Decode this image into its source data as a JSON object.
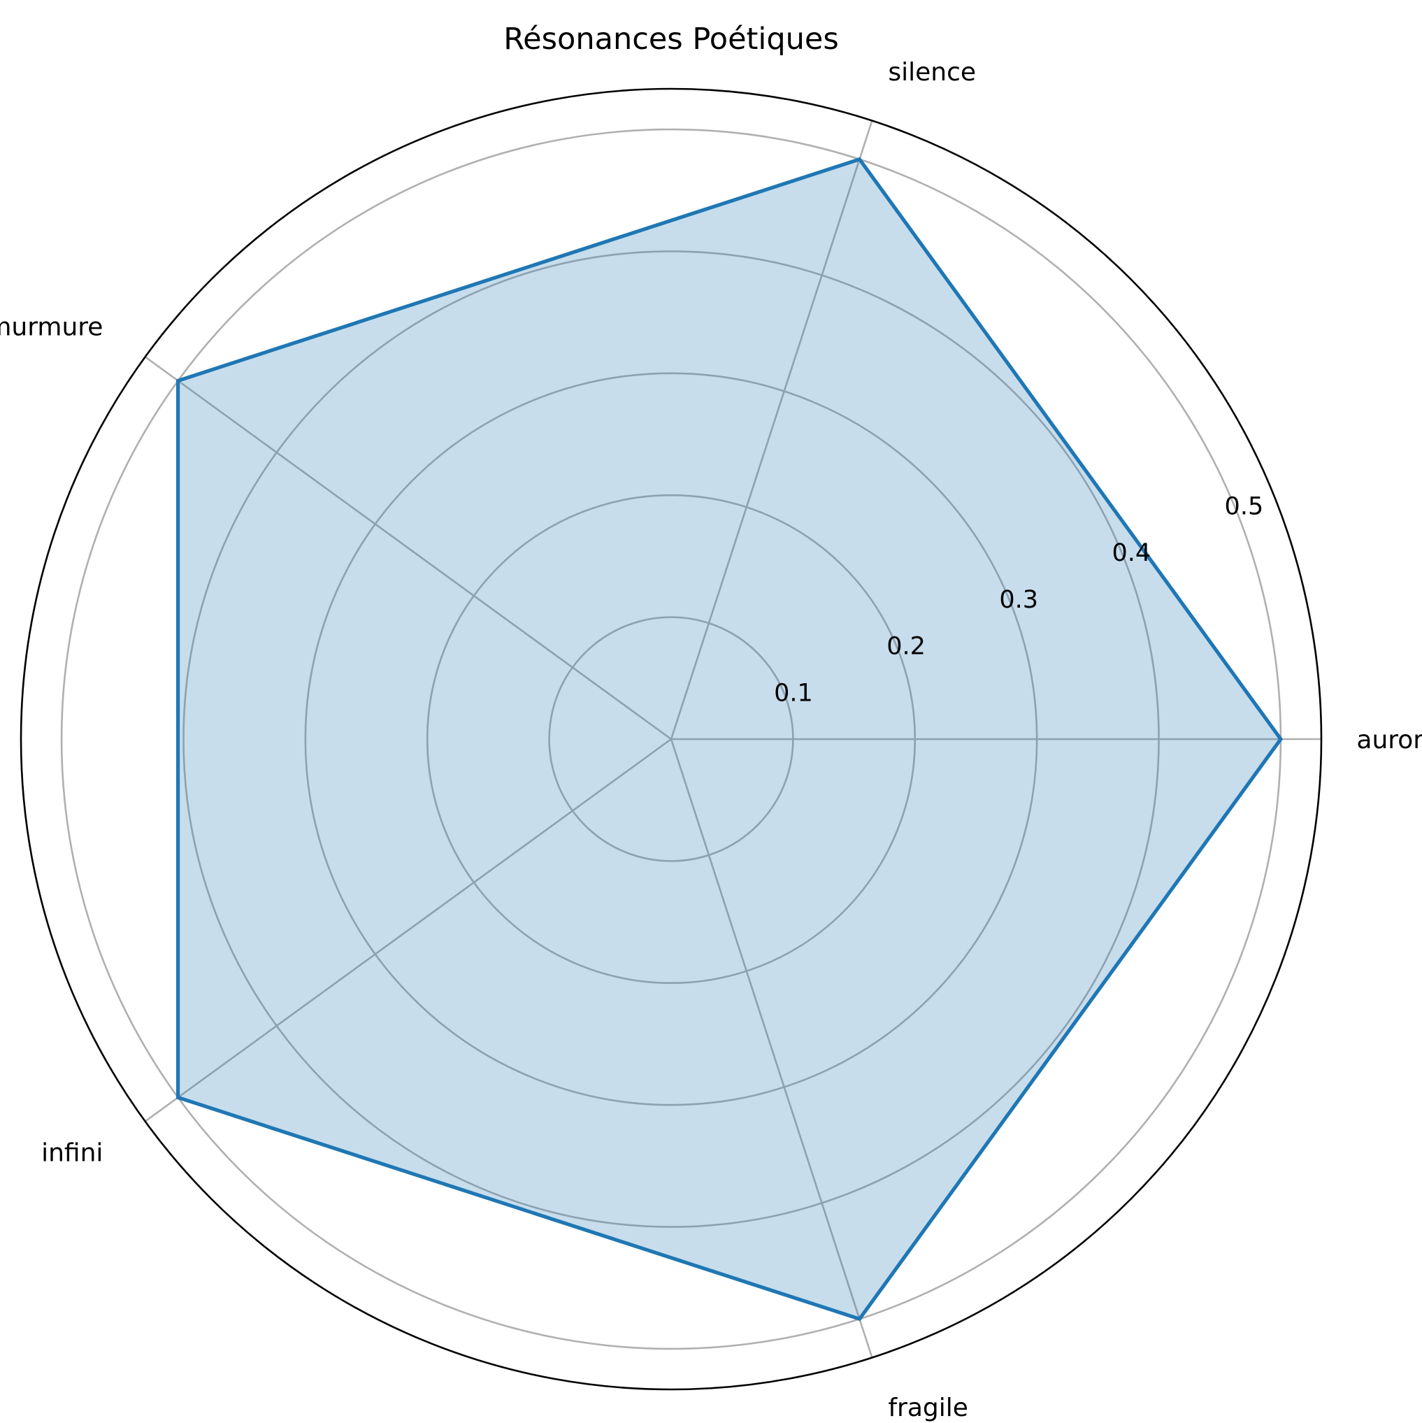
{
  "chart_data": {
    "type": "radar",
    "title": "Résonances Poétiques",
    "categories": [
      "aurore",
      "silence",
      "murmure",
      "infini",
      "fragile"
    ],
    "rticks": [
      0.1,
      0.2,
      0.3,
      0.4,
      0.5
    ],
    "rtick_labels": [
      "0.1",
      "0.2",
      "0.3",
      "0.4",
      "0.5"
    ],
    "rlim": [
      0,
      0.5333
    ],
    "grid": true,
    "series": [
      {
        "values": [
          0.5,
          0.5,
          0.5,
          0.5,
          0.5
        ],
        "color": "#1f77b4",
        "fill_color": "#1f77b4",
        "fill_opacity": 0.25
      }
    ]
  }
}
